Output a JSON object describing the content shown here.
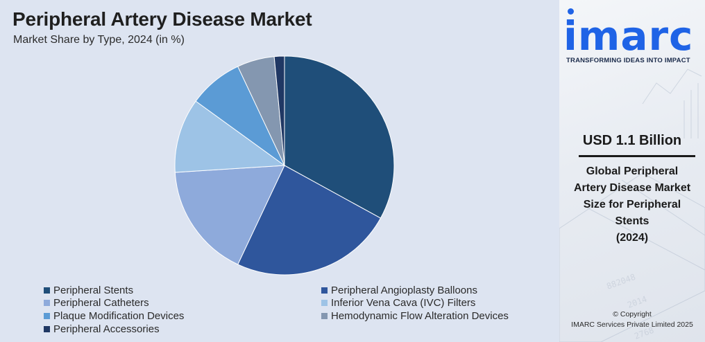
{
  "title": "Peripheral Artery Disease Market",
  "subtitle": "Market Share by Type, 2024 (in %)",
  "chart_data": {
    "type": "pie",
    "title": "Peripheral Artery Disease Market",
    "subtitle": "Market Share by Type, 2024 (in %)",
    "legend_position": "bottom",
    "series": [
      {
        "name": "Peripheral Stents",
        "value": 33.0,
        "color": "#1f4e79"
      },
      {
        "name": "Peripheral Angioplasty Balloons",
        "value": 24.0,
        "color": "#2f569c"
      },
      {
        "name": "Peripheral Catheters",
        "value": 17.0,
        "color": "#8eaadb"
      },
      {
        "name": "Inferior Vena Cava (IVC) Filters",
        "value": 11.0,
        "color": "#9dc3e6"
      },
      {
        "name": "Plaque Modification Devices",
        "value": 8.0,
        "color": "#5b9bd5"
      },
      {
        "name": "Hemodynamic Flow Alteration Devices",
        "value": 5.5,
        "color": "#8497b0"
      },
      {
        "name": "Peripheral Accessories",
        "value": 1.5,
        "color": "#203864"
      }
    ]
  },
  "side_panel": {
    "logo": "imarc",
    "tagline": "TRANSFORMING IDEAS INTO IMPACT",
    "market_size": "USD 1.1 Billion",
    "description_lines": [
      "Global Peripheral",
      "Artery Disease Market",
      "Size for Peripheral",
      "Stents",
      "(2024)"
    ],
    "copyright_lines": [
      "© Copyright",
      "IMARC Services Private Limited 2025"
    ]
  }
}
